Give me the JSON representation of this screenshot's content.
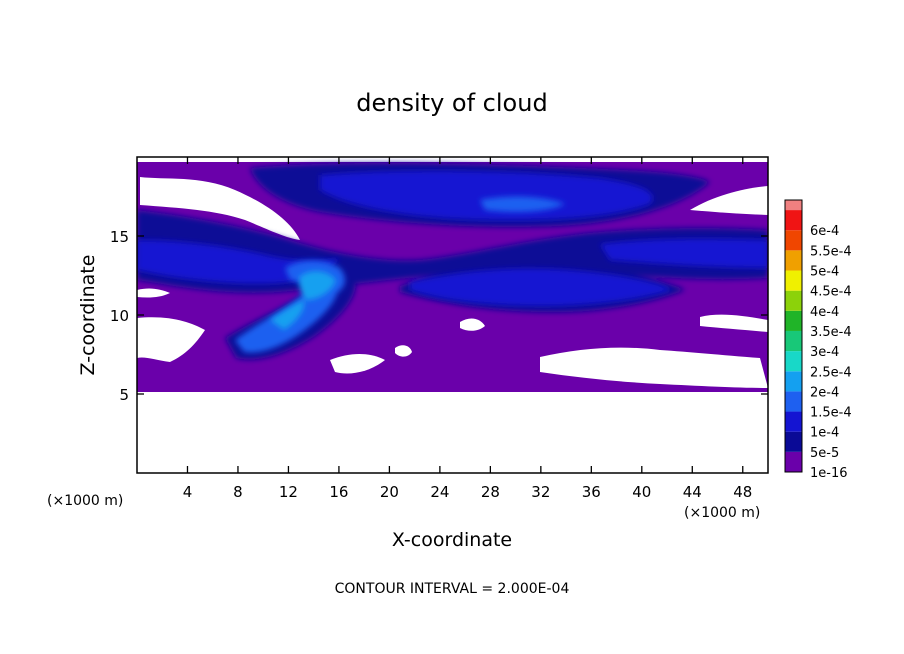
{
  "chart_data": {
    "type": "heatmap",
    "title": "density of cloud",
    "xlabel": "X-coordinate",
    "ylabel": "Z-coordinate",
    "x_unit_label": "(×1000 m)",
    "y_unit_label": "(×1000 m)",
    "xlim": [
      0,
      50
    ],
    "ylim": [
      0,
      20
    ],
    "x_ticks": [
      4,
      8,
      12,
      16,
      20,
      24,
      28,
      32,
      36,
      40,
      44,
      48
    ],
    "y_ticks": [
      5,
      10,
      15
    ],
    "contour_interval_text": "CONTOUR INTERVAL = 2.000E-04",
    "colorbar": {
      "levels": [
        {
          "label": "1e-16",
          "color": "#6a00aa"
        },
        {
          "label": "5e-5",
          "color": "#0a0a96"
        },
        {
          "label": "1e-4",
          "color": "#1414d2"
        },
        {
          "label": "1.5e-4",
          "color": "#1e60f0"
        },
        {
          "label": "2e-4",
          "color": "#14a0f0"
        },
        {
          "label": "2.5e-4",
          "color": "#18d8c8"
        },
        {
          "label": "3e-4",
          "color": "#18c878"
        },
        {
          "label": "3.5e-4",
          "color": "#20b428"
        },
        {
          "label": "4e-4",
          "color": "#8cd20a"
        },
        {
          "label": "4.5e-4",
          "color": "#f0f000"
        },
        {
          "label": "5e-4",
          "color": "#f0a000"
        },
        {
          "label": "5.5e-4",
          "color": "#f04600"
        },
        {
          "label": "6e-4",
          "color": "#f01414"
        }
      ],
      "top_color": "#f08080"
    },
    "grid": false,
    "legend": "right"
  }
}
